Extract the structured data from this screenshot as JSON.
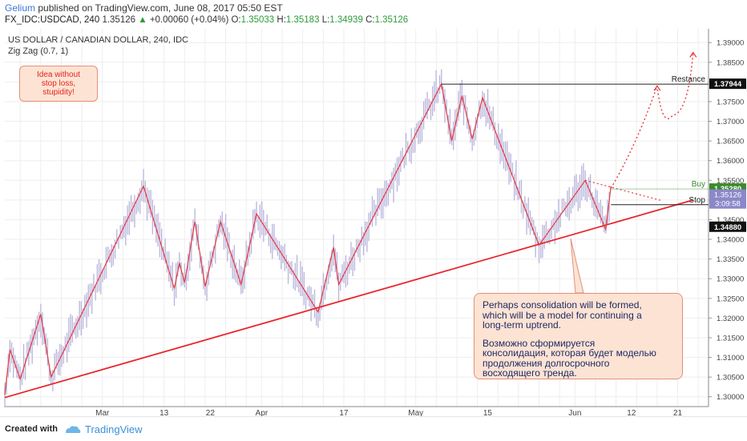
{
  "header": {
    "author": "Gelium",
    "published": "published on TradingView.com, June 08, 2017 05:50 EST",
    "symbol": "FX_IDC:USDCAD, 240",
    "last": "1.35126",
    "change": "+0.00060 (+0.04%)",
    "o_label": "O:",
    "o": "1.35033",
    "h_label": "H:",
    "h": "1.35183",
    "l_label": "L:",
    "l": "1.34939",
    "c_label": "C:",
    "c": "1.35126"
  },
  "chart_title": "US DOLLAR / CANADIAN DOLLAR, 240, IDC",
  "indicator": "Zig Zag (0.7, 1)",
  "note_left": [
    "Idea without",
    "stop loss,",
    "stupidity!"
  ],
  "note_right": {
    "en": [
      "Perhaps consolidation will be formed,",
      "which will be a model for continuing a",
      "long-term uptrend."
    ],
    "ru": [
      "Возможно сформируется",
      "консолидация, которая будет моделью",
      "продолжения долгосрочного",
      "восходящего тренда."
    ]
  },
  "footer": {
    "created": "Created with",
    "brand": "TradingView"
  },
  "colors": {
    "zigzag": "#e8383d",
    "trend": "#e8262b",
    "candles": "#b7b4dc",
    "buy": "#3a8a2b",
    "grid": "#eeeeee"
  },
  "chart_data": {
    "type": "line",
    "ylim": [
      1.2975,
      1.3935
    ],
    "y_ticks": [
      "1.30000",
      "1.30500",
      "1.31000",
      "1.31500",
      "1.32000",
      "1.32500",
      "1.33000",
      "1.33500",
      "1.34000",
      "1.34500",
      "1.35000",
      "1.35500",
      "1.36000",
      "1.36500",
      "1.37000",
      "1.37500",
      "1.38000",
      "1.38500",
      "1.39000"
    ],
    "x_ticks": [
      "Mar",
      "13",
      "22",
      "Apr",
      "17",
      "May",
      "15",
      "Jun",
      "12",
      "21"
    ],
    "zigzag": [
      [
        "2017-02-10",
        1.3005
      ],
      [
        "2017-02-11",
        1.312
      ],
      [
        "2017-02-13",
        1.3045
      ],
      [
        "2017-02-17",
        1.321
      ],
      [
        "2017-02-19",
        1.305
      ],
      [
        "2017-03-09",
        1.3535
      ],
      [
        "2017-03-15",
        1.3275
      ],
      [
        "2017-03-16",
        1.334
      ],
      [
        "2017-03-17",
        1.329
      ],
      [
        "2017-03-19",
        1.3445
      ],
      [
        "2017-03-21",
        1.328
      ],
      [
        "2017-03-24",
        1.3445
      ],
      [
        "2017-03-28",
        1.3285
      ],
      [
        "2017-03-31",
        1.3465
      ],
      [
        "2017-04-12",
        1.3215
      ],
      [
        "2017-04-15",
        1.338
      ],
      [
        "2017-04-16",
        1.3285
      ],
      [
        "2017-05-06",
        1.3795
      ],
      [
        "2017-05-08",
        1.365
      ],
      [
        "2017-05-10",
        1.3765
      ],
      [
        "2017-05-12",
        1.3655
      ],
      [
        "2017-05-14",
        1.376
      ],
      [
        "2017-05-25",
        1.3385
      ],
      [
        "2017-06-03",
        1.355
      ],
      [
        "2017-06-07",
        1.3425
      ],
      [
        "2017-06-08",
        1.3535
      ]
    ],
    "projection": [
      [
        "2017-06-08",
        1.353
      ],
      [
        "2017-06-17",
        1.379
      ],
      [
        "2017-06-20",
        1.3715
      ],
      [
        "2017-06-24",
        1.3875
      ]
    ],
    "projection_down": [
      [
        "2017-06-03",
        1.355
      ],
      [
        "2017-06-18",
        1.3498
      ]
    ],
    "trendline": [
      [
        "2017-02-10",
        1.2998
      ],
      [
        "2017-06-24",
        1.35
      ]
    ],
    "levels": [
      {
        "label": "Restance",
        "value": "1.37944",
        "y": 1.37944
      },
      {
        "label": "Buy",
        "value": "1.35280",
        "y": 1.3528
      },
      {
        "label": "Stop",
        "value": "1.34880",
        "y": 1.3488
      }
    ],
    "price_tag": {
      "value": "1.35126",
      "time": "3:09:58",
      "y": 1.35126
    }
  }
}
